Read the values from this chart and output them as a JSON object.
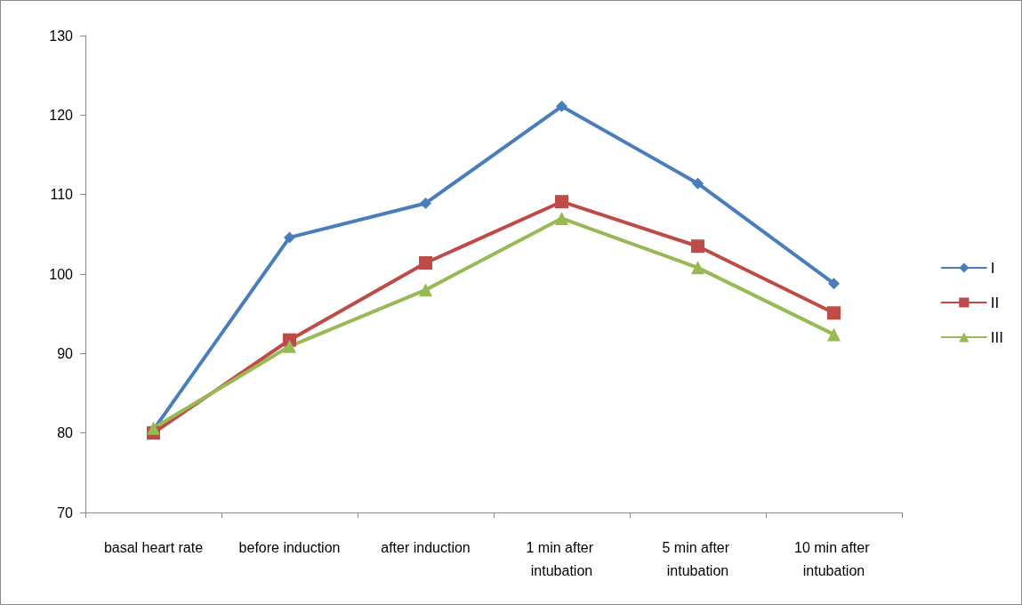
{
  "chart_data": {
    "type": "line",
    "categories": [
      "basal heart rate",
      "before induction",
      "after induction",
      "1 min after intubation",
      "5 min after intubation",
      "10 min after intubation"
    ],
    "series": [
      {
        "name": "I",
        "color": "#4a7ebb",
        "marker": "diamond",
        "values": [
          80.4,
          104.6,
          108.9,
          121.1,
          111.4,
          98.8
        ]
      },
      {
        "name": "II",
        "color": "#be4b48",
        "marker": "square",
        "values": [
          80.0,
          91.7,
          101.4,
          109.1,
          103.5,
          95.1
        ]
      },
      {
        "name": "III",
        "color": "#98b954",
        "marker": "triangle",
        "values": [
          80.6,
          90.9,
          98.0,
          107.0,
          100.8,
          92.4
        ]
      }
    ],
    "ylim": [
      70,
      130
    ],
    "yticks": [
      70,
      80,
      90,
      100,
      110,
      120,
      130
    ],
    "grid": false,
    "legend": "right",
    "line_style": "solid"
  }
}
